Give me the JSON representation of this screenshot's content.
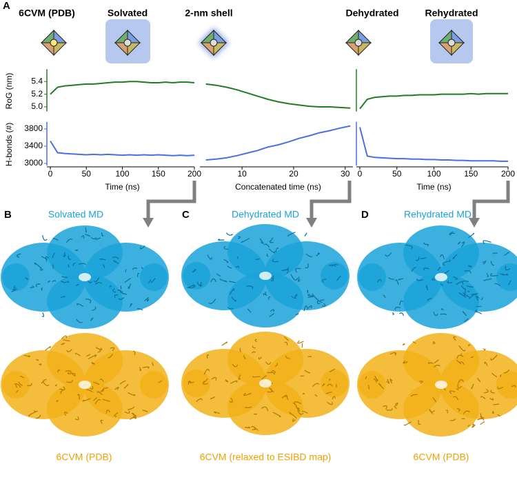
{
  "panel_labels": [
    "A",
    "B",
    "C",
    "D"
  ],
  "stages": [
    "6CVM (PDB)",
    "Solvated",
    "2-nm shell",
    "Dehydrated",
    "Rehydrated"
  ],
  "md_titles": [
    "Solvated MD",
    "Dehydrated MD",
    "Rehydrated MD"
  ],
  "pdb_titles": [
    "6CVM (PDB)",
    "6CVM (relaxed to ESIBD map)",
    "6CVM (PDB)"
  ],
  "chart_data": [
    {
      "type": "line",
      "ylabel": "RoG (nm)",
      "color": "#1e7d1e",
      "x": [
        0,
        10,
        20,
        30,
        40,
        50,
        60,
        70,
        80,
        90,
        100,
        110,
        120,
        130,
        140,
        150,
        160,
        170,
        180,
        190,
        200
      ],
      "values": [
        5.2,
        5.31,
        5.33,
        5.34,
        5.35,
        5.36,
        5.36,
        5.37,
        5.38,
        5.39,
        5.39,
        5.4,
        5.4,
        5.39,
        5.38,
        5.38,
        5.39,
        5.38,
        5.39,
        5.39,
        5.38
      ],
      "xlim": [
        0,
        200
      ],
      "ylim": [
        4.95,
        5.55
      ],
      "yticks": [
        {
          "value": 5,
          "label": "5.0"
        },
        5.2,
        5.4
      ]
    },
    {
      "type": "line",
      "ylabel": "H-bonds (#)",
      "xlabel": "Time (ns)",
      "color": "#4a6fe3",
      "x": [
        0,
        10,
        20,
        30,
        40,
        50,
        60,
        70,
        80,
        90,
        100,
        110,
        120,
        130,
        140,
        150,
        160,
        170,
        180,
        190,
        200
      ],
      "values": [
        3520,
        3250,
        3230,
        3220,
        3210,
        3200,
        3210,
        3200,
        3210,
        3200,
        3190,
        3200,
        3190,
        3200,
        3190,
        3200,
        3190,
        3180,
        3190,
        3180,
        3190
      ],
      "xlim": [
        0,
        200
      ],
      "ylim": [
        2980,
        3900
      ],
      "xticks": [
        0,
        50,
        100,
        150,
        200
      ],
      "yticks": [
        3000,
        3400,
        3800
      ]
    },
    {
      "type": "line",
      "color": "#1e7d1e",
      "x": [
        3,
        5,
        7,
        9,
        11,
        13,
        15,
        17,
        19,
        21,
        23,
        25,
        27,
        29,
        31
      ],
      "values": [
        5.36,
        5.34,
        5.31,
        5.27,
        5.22,
        5.17,
        5.12,
        5.08,
        5.05,
        5.03,
        5.01,
        5.0,
        5.0,
        4.99,
        4.98
      ],
      "xlim": [
        2.5,
        31.5
      ],
      "ylim": [
        4.95,
        5.55
      ]
    },
    {
      "type": "line",
      "xlabel": "Concatenated time (ns)",
      "color": "#4a6fe3",
      "x": [
        3,
        5,
        7,
        9,
        11,
        13,
        15,
        17,
        19,
        21,
        23,
        25,
        27,
        29,
        31
      ],
      "values": [
        3080,
        3100,
        3130,
        3180,
        3240,
        3300,
        3380,
        3430,
        3500,
        3580,
        3640,
        3710,
        3760,
        3820,
        3870
      ],
      "xlim": [
        2.5,
        31.5
      ],
      "ylim": [
        2980,
        3900
      ],
      "xticks": [
        10,
        20,
        30
      ]
    },
    {
      "type": "line",
      "color": "#1e7d1e",
      "x": [
        0,
        10,
        20,
        30,
        40,
        50,
        60,
        70,
        80,
        90,
        100,
        110,
        120,
        130,
        140,
        150,
        160,
        170,
        180,
        190,
        200
      ],
      "values": [
        4.97,
        5.12,
        5.15,
        5.16,
        5.17,
        5.17,
        5.18,
        5.18,
        5.19,
        5.19,
        5.19,
        5.2,
        5.2,
        5.2,
        5.2,
        5.21,
        5.2,
        5.21,
        5.21,
        5.21,
        5.21
      ],
      "xlim": [
        0,
        200
      ],
      "ylim": [
        4.95,
        5.55
      ]
    },
    {
      "type": "line",
      "xlabel": "Time (ns)",
      "color": "#4a6fe3",
      "x": [
        0,
        10,
        20,
        30,
        40,
        50,
        60,
        70,
        80,
        90,
        100,
        110,
        120,
        130,
        140,
        150,
        160,
        170,
        180,
        190,
        200
      ],
      "values": [
        3840,
        3170,
        3140,
        3130,
        3120,
        3110,
        3110,
        3100,
        3100,
        3090,
        3090,
        3080,
        3080,
        3070,
        3070,
        3060,
        3060,
        3060,
        3060,
        3050,
        3050
      ],
      "xlim": [
        0,
        200
      ],
      "ylim": [
        2980,
        3900
      ],
      "xticks": [
        0,
        50,
        100,
        150,
        200
      ]
    }
  ]
}
